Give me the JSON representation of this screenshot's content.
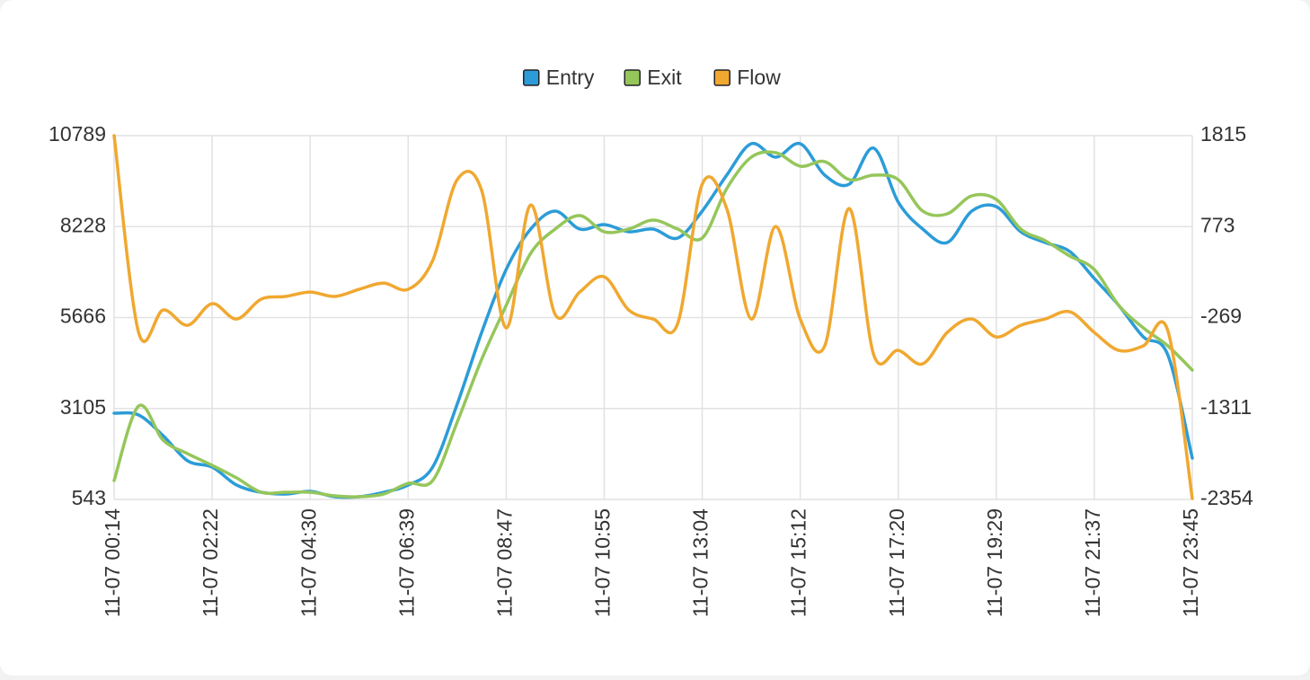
{
  "chart_data": {
    "type": "line",
    "categories": [
      "11-07 00:14",
      null,
      null,
      null,
      "11-07 02:22",
      null,
      null,
      null,
      "11-07 04:30",
      null,
      null,
      null,
      "11-07 06:39",
      null,
      null,
      null,
      "11-07 08:47",
      null,
      null,
      null,
      "11-07 10:55",
      null,
      null,
      null,
      "11-07 13:04",
      null,
      null,
      null,
      "11-07 15:12",
      null,
      null,
      null,
      "11-07 17:20",
      null,
      null,
      null,
      "11-07 19:29",
      null,
      null,
      null,
      "11-07 21:37",
      null,
      null,
      null,
      "11-07 23:45"
    ],
    "series": [
      {
        "name": "Entry",
        "color": "#2b9cd8",
        "values": [
          2972,
          2921,
          2339,
          1631,
          1454,
          948,
          745,
          695,
          771,
          619,
          619,
          745,
          948,
          1454,
          3225,
          5249,
          7020,
          8158,
          8664,
          8158,
          8285,
          8082,
          8158,
          7905,
          8664,
          9676,
          10562,
          10182,
          10562,
          9676,
          9423,
          10435,
          8917,
          8158,
          7779,
          8664,
          8791,
          8082,
          7779,
          7526,
          6767,
          6008,
          5122,
          4616,
          1707
        ]
      },
      {
        "name": "Exit",
        "color": "#95c65a",
        "values": [
          1074,
          3174,
          2213,
          1833,
          1504,
          1150,
          745,
          745,
          745,
          644,
          619,
          695,
          998,
          1074,
          2719,
          4490,
          6008,
          7475,
          8158,
          8538,
          8082,
          8158,
          8411,
          8158,
          7905,
          9297,
          10182,
          10309,
          9929,
          10056,
          9550,
          9676,
          9550,
          8664,
          8588,
          9094,
          8993,
          8158,
          7829,
          7399,
          7020,
          6008,
          5375,
          4869,
          4186
        ]
      },
      {
        "name": "Flow",
        "color": "#f0a830",
        "axis": "y2",
        "values": [
          1815,
          -440,
          -183,
          -358,
          -111,
          -286,
          -59,
          -28,
          23,
          -28,
          54,
          126,
          54,
          383,
          1309,
          1186,
          -389,
          1021,
          -234,
          23,
          198,
          -183,
          -286,
          -337,
          1258,
          980,
          -286,
          774,
          -286,
          -594,
          980,
          -697,
          -646,
          -800,
          -440,
          -286,
          -492,
          -358,
          -286,
          -203,
          -440,
          -646,
          -594,
          -419,
          -2344
        ]
      }
    ],
    "ylim": [
      543,
      10789
    ],
    "yticks": [
      543,
      3105,
      5666,
      8228,
      10789
    ],
    "y2lim": [
      -2354,
      1815
    ],
    "y2ticks": [
      -2354,
      -1311,
      -269,
      773,
      1815
    ],
    "grid": true,
    "legend": "top"
  }
}
